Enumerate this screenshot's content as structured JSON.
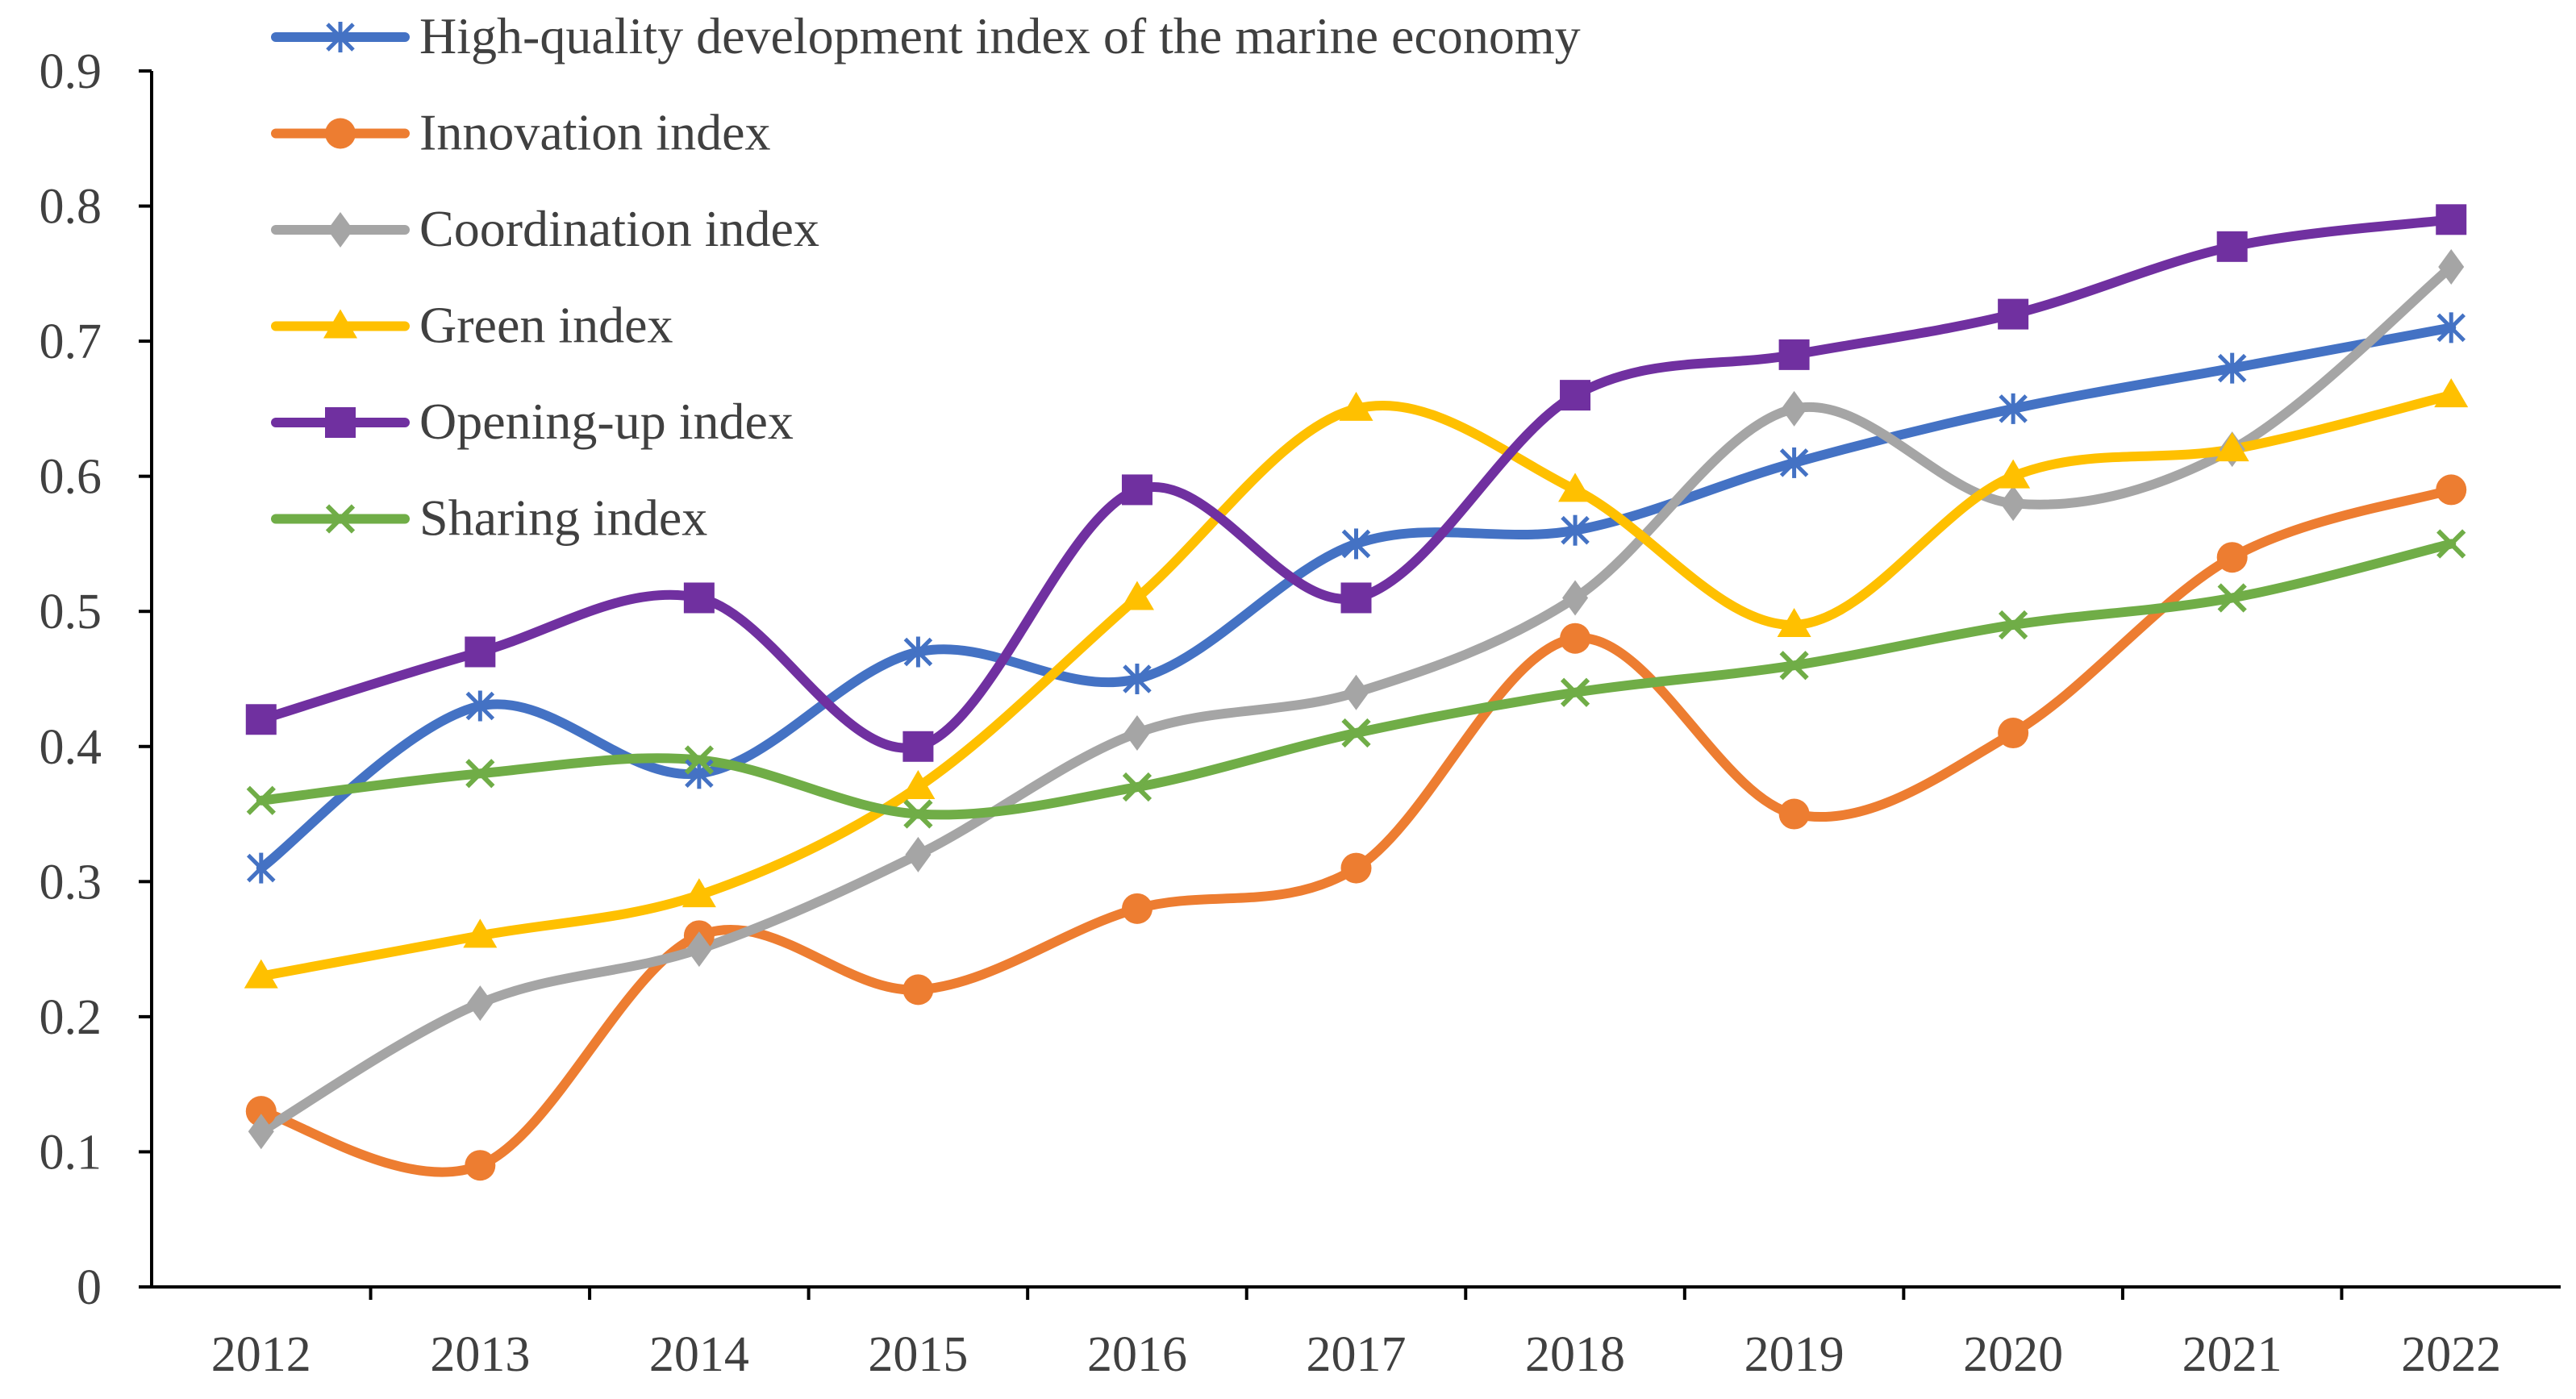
{
  "chart_data": {
    "type": "line",
    "title": "",
    "xlabel": "",
    "ylabel": "",
    "categories": [
      "2012",
      "2013",
      "2014",
      "2015",
      "2016",
      "2017",
      "2018",
      "2019",
      "2020",
      "2021",
      "2022"
    ],
    "ylim": [
      0,
      0.9
    ],
    "yticks": [
      "0",
      "0.1",
      "0.2",
      "0.3",
      "0.4",
      "0.5",
      "0.6",
      "0.7",
      "0.8",
      "0.9"
    ],
    "ytick_values": [
      0,
      0.1,
      0.2,
      0.3,
      0.4,
      0.5,
      0.6,
      0.7,
      0.8,
      0.9
    ],
    "grid": false,
    "legend_position": "top-left",
    "smooth": true,
    "series": [
      {
        "name": "High-quality development index of the marine economy",
        "color": "#4472C4",
        "marker": "asterisk",
        "values": [
          0.31,
          0.43,
          0.38,
          0.47,
          0.45,
          0.55,
          0.56,
          0.61,
          0.65,
          0.68,
          0.71
        ]
      },
      {
        "name": "Innovation index",
        "color": "#ED7D31",
        "marker": "circle",
        "values": [
          0.13,
          0.09,
          0.26,
          0.22,
          0.28,
          0.31,
          0.48,
          0.35,
          0.41,
          0.54,
          0.59
        ]
      },
      {
        "name": "Coordination index",
        "color": "#A5A5A5",
        "marker": "diamond",
        "values": [
          0.115,
          0.21,
          0.25,
          0.32,
          0.41,
          0.44,
          0.51,
          0.65,
          0.58,
          0.62,
          0.755
        ]
      },
      {
        "name": "Green index",
        "color": "#FFC000",
        "marker": "triangle",
        "values": [
          0.23,
          0.26,
          0.29,
          0.37,
          0.51,
          0.65,
          0.59,
          0.49,
          0.6,
          0.62,
          0.66
        ]
      },
      {
        "name": "Opening-up index",
        "color": "#7030A0",
        "marker": "square",
        "values": [
          0.42,
          0.47,
          0.51,
          0.4,
          0.59,
          0.51,
          0.66,
          0.69,
          0.72,
          0.77,
          0.79
        ]
      },
      {
        "name": "Sharing index",
        "color": "#70AD47",
        "marker": "x",
        "values": [
          0.36,
          0.38,
          0.39,
          0.35,
          0.37,
          0.41,
          0.44,
          0.46,
          0.49,
          0.51,
          0.55
        ]
      }
    ]
  }
}
